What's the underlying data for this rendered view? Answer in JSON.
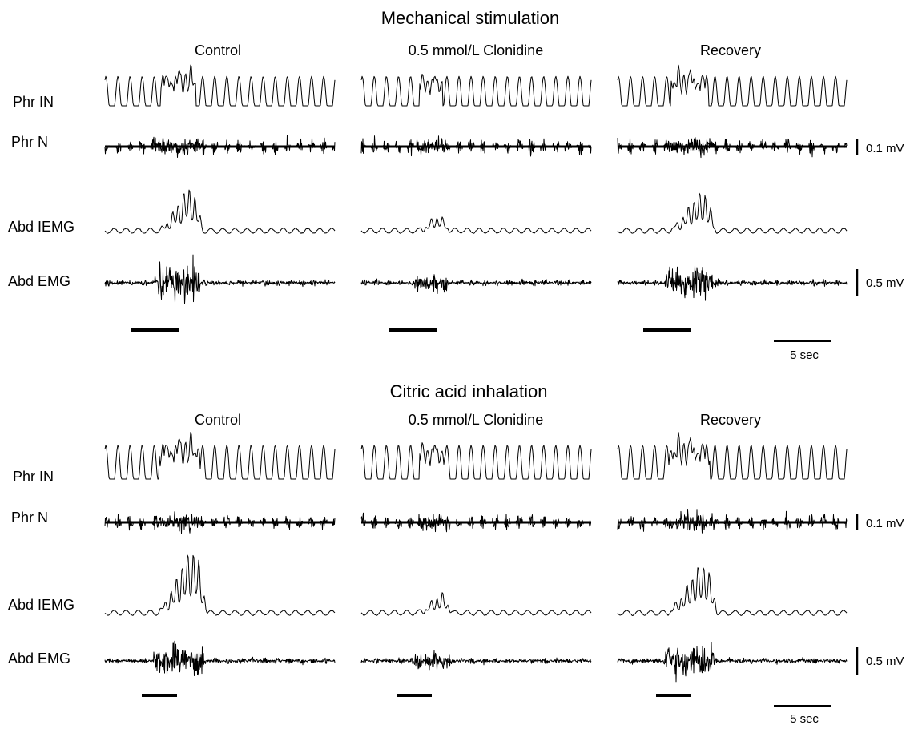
{
  "sections": [
    {
      "title": "Mechanical stimulation",
      "columns": [
        "Control",
        "0.5 mmol/L Clonidine",
        "Recovery"
      ],
      "rows": [
        "Phr IN",
        "Phr N",
        "Abd IEMG",
        "Abd EMG"
      ],
      "scale_phr": "0.1 mV",
      "scale_abd": "0.5 mV",
      "time_scale": "5 sec"
    },
    {
      "title": "Citric acid inhalation",
      "columns": [
        "Control",
        "0.5 mmol/L Clonidine",
        "Recovery"
      ],
      "rows": [
        "Phr IN",
        "Phr N",
        "Abd IEMG",
        "Abd EMG"
      ],
      "scale_phr": "0.1 mV",
      "scale_abd": "0.5 mV",
      "time_scale": "5 sec"
    }
  ]
}
